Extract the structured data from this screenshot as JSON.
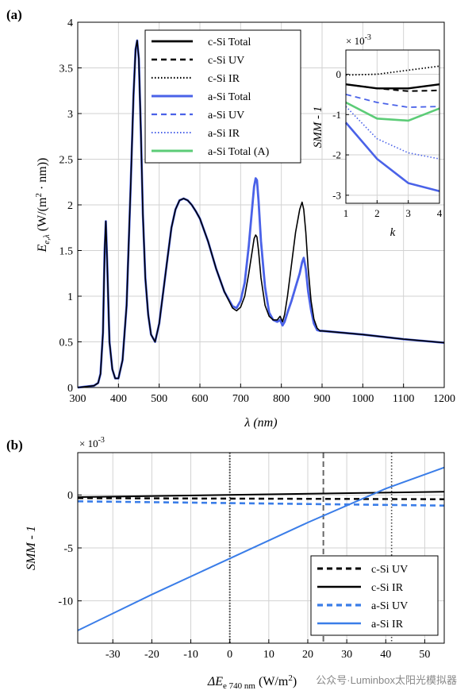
{
  "colors": {
    "csi": "#000000",
    "asi_a": "#4a62e8",
    "asi_total_A": "#5ccc77",
    "asi_b": "#3a7de8",
    "grid": "#d2d2d2",
    "ref_black": "#333333",
    "ref_gray": "#666666",
    "ref_dark": "#444444"
  },
  "watermark": "公众号·Luminbox太阳光模拟器",
  "chart_data": [
    {
      "panel": "(a)",
      "type": "line",
      "xlabel": "λ (nm)",
      "ylabel_main": "E",
      "ylabel_sub": "e,λ",
      "ylabel_rest": " (W/(m",
      "ylabel_sup": "2",
      "ylabel_end": " · nm))",
      "xlim": [
        300,
        1200
      ],
      "ylim": [
        0,
        4
      ],
      "xticks": [
        300,
        400,
        500,
        600,
        700,
        800,
        900,
        1000,
        1100,
        1200
      ],
      "yticks": [
        0,
        0.5,
        1,
        1.5,
        2,
        2.5,
        3,
        3.5,
        4
      ],
      "grid": true,
      "legend_position": "top-right",
      "legend": [
        "c-Si Total",
        "c-Si UV",
        "c-Si IR",
        "a-Si Total",
        "a-Si UV",
        "a-Si IR",
        "a-Si Total (A)"
      ],
      "series": [
        {
          "name": "c-Si Total",
          "x": [
            300,
            340,
            350,
            356,
            362,
            366,
            369,
            372,
            378,
            385,
            392,
            400,
            410,
            420,
            430,
            437,
            442,
            446,
            450,
            455,
            460,
            466,
            473,
            480,
            490,
            500,
            510,
            520,
            530,
            540,
            550,
            560,
            570,
            580,
            590,
            600,
            620,
            640,
            660,
            680,
            690,
            700,
            710,
            720,
            728,
            733,
            737,
            740,
            744,
            750,
            760,
            770,
            780,
            790,
            797,
            803,
            808,
            815,
            825,
            835,
            845,
            851,
            855,
            860,
            866,
            873,
            880,
            888,
            895,
            900,
            1000,
            1100,
            1200
          ],
          "y": [
            0.0,
            0.02,
            0.05,
            0.15,
            0.6,
            1.5,
            1.82,
            1.4,
            0.5,
            0.2,
            0.1,
            0.1,
            0.3,
            0.9,
            2.2,
            3.2,
            3.7,
            3.8,
            3.6,
            2.8,
            1.9,
            1.2,
            0.8,
            0.58,
            0.5,
            0.7,
            1.05,
            1.4,
            1.75,
            1.95,
            2.05,
            2.07,
            2.05,
            2.0,
            1.93,
            1.85,
            1.6,
            1.3,
            1.05,
            0.87,
            0.84,
            0.88,
            1.0,
            1.25,
            1.48,
            1.63,
            1.67,
            1.65,
            1.5,
            1.2,
            0.9,
            0.78,
            0.74,
            0.74,
            0.78,
            0.72,
            0.8,
            1.0,
            1.35,
            1.7,
            1.95,
            2.03,
            1.95,
            1.7,
            1.3,
            0.95,
            0.75,
            0.65,
            0.62,
            0.62,
            0.58,
            0.53,
            0.49
          ]
        },
        {
          "name": "a-Si Total",
          "x": [
            300,
            340,
            350,
            356,
            362,
            366,
            369,
            372,
            378,
            385,
            392,
            400,
            410,
            420,
            430,
            437,
            442,
            446,
            450,
            455,
            460,
            466,
            473,
            480,
            490,
            500,
            510,
            520,
            530,
            540,
            550,
            560,
            570,
            580,
            590,
            600,
            620,
            640,
            660,
            680,
            690,
            700,
            710,
            720,
            728,
            733,
            737,
            740,
            744,
            750,
            760,
            770,
            780,
            790,
            797,
            803,
            808,
            815,
            825,
            835,
            845,
            851,
            855,
            860,
            866,
            873,
            880,
            888,
            895,
            900,
            1000,
            1100,
            1200
          ],
          "y": [
            0.0,
            0.02,
            0.05,
            0.15,
            0.6,
            1.5,
            1.82,
            1.4,
            0.5,
            0.2,
            0.1,
            0.1,
            0.3,
            0.9,
            2.2,
            3.2,
            3.7,
            3.8,
            3.6,
            2.8,
            1.9,
            1.2,
            0.8,
            0.58,
            0.5,
            0.7,
            1.05,
            1.4,
            1.75,
            1.95,
            2.05,
            2.07,
            2.05,
            2.0,
            1.93,
            1.85,
            1.6,
            1.3,
            1.05,
            0.89,
            0.87,
            0.95,
            1.15,
            1.55,
            1.95,
            2.2,
            2.29,
            2.27,
            2.05,
            1.6,
            1.1,
            0.82,
            0.74,
            0.72,
            0.74,
            0.68,
            0.72,
            0.82,
            0.95,
            1.1,
            1.25,
            1.37,
            1.42,
            1.3,
            1.05,
            0.85,
            0.7,
            0.63,
            0.62,
            0.62,
            0.58,
            0.53,
            0.49
          ]
        }
      ]
    },
    {
      "panel": "inset",
      "type": "line",
      "xlabel": "k",
      "ylabel": "SMM - 1",
      "scale_label": "× 10",
      "scale_exp": "-3",
      "xlim": [
        1,
        4
      ],
      "ylim": [
        -3.2,
        0.6
      ],
      "xticks": [
        1,
        2,
        3,
        4
      ],
      "yticks": [
        0,
        -1,
        -2,
        -3
      ],
      "grid": true,
      "series": [
        {
          "name": "c-Si Total",
          "x": [
            1,
            2,
            3,
            4
          ],
          "y": [
            -0.25,
            -0.35,
            -0.35,
            -0.25
          ]
        },
        {
          "name": "c-Si UV",
          "x": [
            1,
            2,
            3,
            4
          ],
          "y": [
            -0.25,
            -0.35,
            -0.42,
            -0.4
          ]
        },
        {
          "name": "c-Si IR",
          "x": [
            1,
            2,
            3,
            4
          ],
          "y": [
            -0.02,
            0.0,
            0.1,
            0.2
          ]
        },
        {
          "name": "a-Si Total",
          "x": [
            1,
            2,
            3,
            4
          ],
          "y": [
            -1.2,
            -2.1,
            -2.7,
            -2.9
          ]
        },
        {
          "name": "a-Si UV",
          "x": [
            1,
            2,
            3,
            4
          ],
          "y": [
            -0.5,
            -0.7,
            -0.82,
            -0.8
          ]
        },
        {
          "name": "a-Si IR",
          "x": [
            1,
            2,
            3,
            4
          ],
          "y": [
            -0.8,
            -1.6,
            -1.95,
            -2.1
          ]
        },
        {
          "name": "a-Si Total (A)",
          "x": [
            1,
            2,
            3,
            4
          ],
          "y": [
            -0.7,
            -1.1,
            -1.15,
            -0.85
          ]
        }
      ]
    },
    {
      "panel": "(b)",
      "type": "line",
      "xlabel_main": "ΔE",
      "xlabel_sub": "e 740 nm",
      "xlabel_rest": " (W/m",
      "xlabel_sup": "2",
      "xlabel_end": ")",
      "ylabel": "SMM - 1",
      "scale_label": "× 10",
      "scale_exp": "-3",
      "xlim": [
        -39,
        55
      ],
      "ylim": [
        -14,
        4
      ],
      "xticks": [
        -30,
        -20,
        -10,
        0,
        10,
        20,
        30,
        40,
        50
      ],
      "yticks": [
        0,
        -5,
        -10
      ],
      "grid": true,
      "legend_position": "bottom-right",
      "legend": [
        "c-Si UV",
        "c-Si IR",
        "a-Si UV",
        "a-Si IR"
      ],
      "ref_lines_x": [
        0,
        24,
        41.5
      ],
      "series": [
        {
          "name": "c-Si UV",
          "x": [
            -39,
            55
          ],
          "y": [
            -0.3,
            -0.4
          ]
        },
        {
          "name": "c-Si IR",
          "x": [
            -39,
            55
          ],
          "y": [
            -0.2,
            0.3
          ]
        },
        {
          "name": "a-Si UV",
          "x": [
            -39,
            55
          ],
          "y": [
            -0.6,
            -1.0
          ]
        },
        {
          "name": "a-Si IR",
          "x": [
            -39,
            -20,
            0,
            20,
            40,
            55
          ],
          "y": [
            -12.8,
            -9.4,
            -6.0,
            -2.6,
            0.6,
            2.6
          ]
        }
      ]
    }
  ]
}
